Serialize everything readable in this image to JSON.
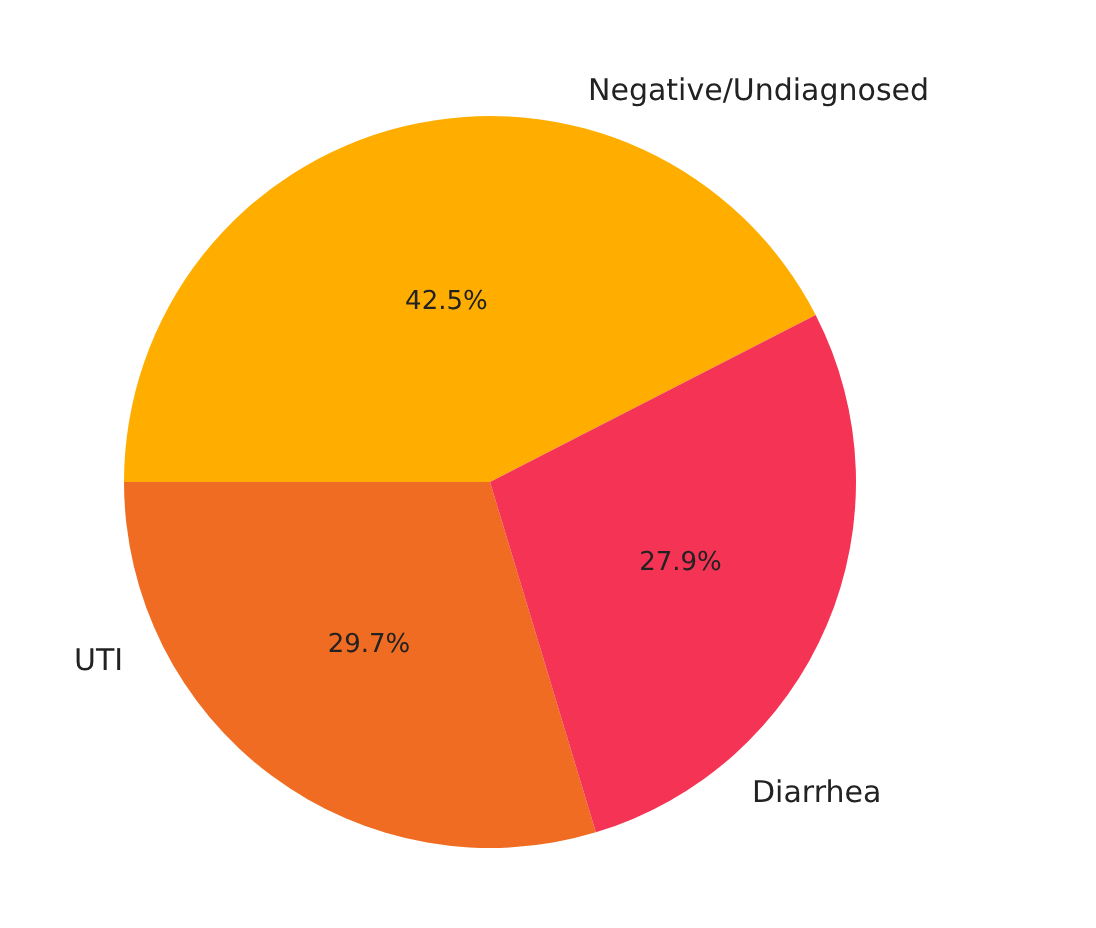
{
  "chart_data": {
    "type": "pie",
    "categories": [
      "Negative/Undiagnosed",
      "UTI",
      "Diarrhea"
    ],
    "values": [
      42.5,
      29.7,
      27.9
    ],
    "value_labels": [
      "42.5%",
      "29.7%",
      "27.9%"
    ],
    "colors": [
      "#ffae00",
      "#ef6c22",
      "#f53354"
    ],
    "legend": false
  }
}
